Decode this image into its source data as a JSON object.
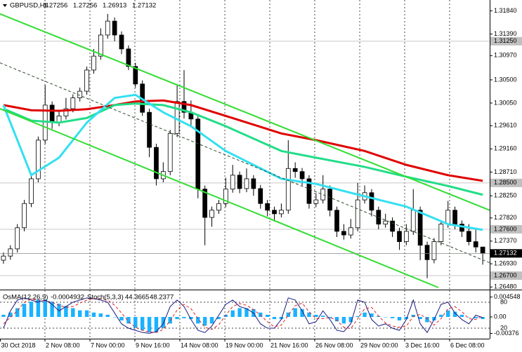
{
  "chart_data": [
    {
      "type": "candlestick",
      "symbol": "GBPUSD,H4",
      "xlim": [
        -0.5,
        70
      ],
      "xticks": [
        {
          "value": -0.5,
          "label": "30 Oct 2018"
        },
        {
          "value": 5.97,
          "label": "2 Nov 08:00"
        },
        {
          "value": 12.45,
          "label": "7 Nov 00:00"
        },
        {
          "value": 18.92,
          "label": "9 Nov 16:00"
        },
        {
          "value": 25.39,
          "label": "14 Nov 08:00"
        },
        {
          "value": 31.87,
          "label": "19 Nov 00:00"
        },
        {
          "value": 38.34,
          "label": "21 Nov 16:00"
        },
        {
          "value": 44.81,
          "label": "26 Nov 08:00"
        },
        {
          "value": 51.29,
          "label": "29 Nov 00:00"
        },
        {
          "value": 57.76,
          "label": "3 Dec 16:00"
        },
        {
          "value": 64.23,
          "label": "6 Dec 08:00"
        }
      ],
      "ylim": [
        1.2647,
        1.3205
      ],
      "yticks": [
        {
          "value": 1.3184,
          "label": "1.31840"
        },
        {
          "value": 1.3139,
          "label": "1.31390"
        },
        {
          "value": 1.3097,
          "label": "1.30970"
        },
        {
          "value": 1.305,
          "label": "1.30500"
        },
        {
          "value": 1.3005,
          "label": "1.30050"
        },
        {
          "value": 1.2961,
          "label": "1.29610"
        },
        {
          "value": 1.2916,
          "label": "1.29160"
        },
        {
          "value": 1.2871,
          "label": "1.28710"
        },
        {
          "value": 1.2825,
          "label": "1.28250"
        },
        {
          "value": 1.2782,
          "label": "1.27820"
        },
        {
          "value": 1.2737,
          "label": "1.27370"
        },
        {
          "value": 1.2693,
          "label": "1.26930"
        },
        {
          "value": 1.2648,
          "label": "1.26480"
        }
      ],
      "levels": [
        {
          "value": 1.3125,
          "label": "1.31250"
        },
        {
          "value": 1.285,
          "label": "1.28500"
        },
        {
          "value": 1.276,
          "label": "1.27600"
        },
        {
          "value": 1.267,
          "label": "1.26700"
        }
      ],
      "grid": true,
      "open": [
        1.27,
        1.2708,
        1.2722,
        1.2763,
        1.281,
        1.2858,
        1.2933,
        1.3001,
        1.2967,
        1.298,
        1.2994,
        1.3015,
        1.3028,
        1.3069,
        1.3096,
        1.3137,
        1.3164,
        1.3137,
        1.311,
        1.3076,
        1.3042,
        1.2987,
        1.2919,
        1.2858,
        1.2872,
        1.2946,
        1.3008,
        1.2987,
        1.2974,
        1.2838,
        1.2783,
        1.2797,
        1.281,
        1.2838,
        1.2865,
        1.2839,
        1.2858,
        1.2839,
        1.281,
        1.2797,
        1.279,
        1.2797,
        1.2878,
        1.2872,
        1.2858,
        1.281,
        1.2817,
        1.2838,
        1.2797,
        1.2756,
        1.2749,
        1.2763,
        1.2817,
        1.2831,
        1.2797,
        1.277,
        1.2776,
        1.2756,
        1.2736,
        1.2756,
        1.2797,
        1.2729,
        1.2701,
        1.2736,
        1.277,
        1.2797,
        1.277,
        1.2756,
        1.2736,
        1.27256
      ],
      "high": [
        1.2715,
        1.2729,
        1.277,
        1.2817,
        1.2865,
        1.294,
        1.304,
        1.3008,
        1.299,
        1.3015,
        1.3022,
        1.3035,
        1.3076,
        1.311,
        1.315,
        1.3178,
        1.3171,
        1.3144,
        1.3117,
        1.3083,
        1.3049,
        1.2994,
        1.2926,
        1.289,
        1.2953,
        1.304,
        1.3069,
        1.301,
        1.2981,
        1.2845,
        1.2804,
        1.2817,
        1.286,
        1.2885,
        1.2872,
        1.2878,
        1.2865,
        1.2846,
        1.2817,
        1.2804,
        1.281,
        1.2933,
        1.289,
        1.2879,
        1.2865,
        1.283,
        1.2865,
        1.2845,
        1.2804,
        1.277,
        1.278,
        1.285,
        1.2845,
        1.2838,
        1.2804,
        1.279,
        1.2783,
        1.2763,
        1.277,
        1.2838,
        1.2804,
        1.2736,
        1.2743,
        1.2777,
        1.2815,
        1.2804,
        1.2777,
        1.277,
        1.276,
        1.27256
      ],
      "low": [
        1.2693,
        1.2701,
        1.2715,
        1.2756,
        1.2803,
        1.2851,
        1.2926,
        1.2955,
        1.296,
        1.2973,
        1.2987,
        1.3008,
        1.3021,
        1.3062,
        1.3089,
        1.313,
        1.3125,
        1.31,
        1.3069,
        1.3035,
        1.298,
        1.29,
        1.2845,
        1.2851,
        1.2865,
        1.2939,
        1.2975,
        1.296,
        1.282,
        1.2729,
        1.2765,
        1.279,
        1.2803,
        1.2831,
        1.283,
        1.2832,
        1.2825,
        1.28,
        1.2785,
        1.2775,
        1.2783,
        1.279,
        1.286,
        1.2845,
        1.28,
        1.2803,
        1.281,
        1.2785,
        1.2745,
        1.274,
        1.2742,
        1.2756,
        1.281,
        1.2785,
        1.276,
        1.2763,
        1.2745,
        1.272,
        1.2729,
        1.2749,
        1.27,
        1.2665,
        1.2694,
        1.2729,
        1.2763,
        1.276,
        1.2745,
        1.2729,
        1.2715,
        1.26913
      ],
      "close": [
        1.2708,
        1.2722,
        1.2763,
        1.281,
        1.2858,
        1.2933,
        1.3001,
        1.2967,
        1.298,
        1.2994,
        1.3015,
        1.3028,
        1.3069,
        1.3096,
        1.3137,
        1.3164,
        1.3137,
        1.311,
        1.3076,
        1.3042,
        1.2987,
        1.2919,
        1.2858,
        1.2872,
        1.2946,
        1.3008,
        1.2987,
        1.2974,
        1.2838,
        1.2783,
        1.2797,
        1.281,
        1.2838,
        1.2865,
        1.2839,
        1.2858,
        1.2839,
        1.281,
        1.2797,
        1.279,
        1.2797,
        1.2878,
        1.2872,
        1.2858,
        1.281,
        1.2817,
        1.2838,
        1.2797,
        1.2756,
        1.2749,
        1.2763,
        1.2817,
        1.2831,
        1.2797,
        1.277,
        1.2776,
        1.2756,
        1.2736,
        1.2756,
        1.2797,
        1.2729,
        1.2701,
        1.2736,
        1.277,
        1.2797,
        1.277,
        1.2756,
        1.2736,
        1.27256,
        1.27132
      ],
      "series": [
        {
          "color": "#e00000",
          "width": 3,
          "x": [
            0,
            4,
            8,
            12,
            16,
            19,
            23,
            27,
            32,
            40,
            45,
            52,
            58,
            64,
            69
          ],
          "values": [
            1.3001,
            1.2991,
            1.299,
            1.2993,
            1.3001,
            1.3008,
            1.301,
            1.3001,
            1.298,
            1.2946,
            1.2933,
            1.2912,
            1.2885,
            1.2865,
            1.2854
          ]
        },
        {
          "color": "#22dd88",
          "width": 3,
          "x": [
            0,
            4,
            8,
            12,
            16,
            19,
            23,
            27,
            32,
            40,
            45,
            52,
            58,
            64,
            69
          ],
          "values": [
            1.2994,
            1.2971,
            1.2967,
            1.2976,
            1.3001,
            1.3004,
            1.3001,
            1.2987,
            1.296,
            1.2912,
            1.2899,
            1.2881,
            1.2862,
            1.2844,
            1.2827
          ]
        },
        {
          "color": "#33e0f0",
          "width": 3,
          "x": [
            0,
            4,
            8,
            12,
            16,
            19,
            23,
            27,
            32,
            40,
            45,
            52,
            58,
            64,
            69
          ],
          "values": [
            1.3001,
            1.2865,
            1.2899,
            1.2967,
            1.3015,
            1.3021,
            1.2987,
            1.296,
            1.2912,
            1.2858,
            1.2848,
            1.2824,
            1.2804,
            1.277,
            1.2759
          ]
        },
        {
          "color": "#33dd33",
          "width": 2,
          "x": [
            -0.5,
            70
          ],
          "values": [
            1.3178,
            1.2797
          ]
        },
        {
          "color": "#33dd33",
          "width": 2,
          "x": [
            -0.5,
            62.6
          ],
          "values": [
            1.2994,
            1.2647
          ]
        },
        {
          "color": "#2a4a2a",
          "width": 1,
          "dash": true,
          "x": [
            -0.5,
            70
          ],
          "values": [
            1.3083,
            1.2695
          ]
        }
      ]
    },
    {
      "type": "oscillator",
      "osma_title": "OsMA(12,26,9)",
      "stoch_title": "Stoch(5,3,3)",
      "ylim": [
        -0.00496,
        0.0056
      ],
      "yticks": [
        0.004548,
        {
          "value": 0,
          "label": "0.00"
        },
        -0.00376
      ],
      "y2lim": [
        -4.3,
        102.7
      ],
      "y2ticks": [
        80,
        20
      ],
      "osma": {
        "color": "#1ab2ff",
        "values": [
          0.0005,
          0.001,
          0.002,
          0.003,
          0.0035,
          0.004,
          0.004,
          0.0035,
          0.003,
          0.0025,
          0.002,
          0.0015,
          0.0015,
          0.001,
          0.0008,
          0.0005,
          0,
          -0.0008,
          -0.0015,
          -0.0025,
          -0.003,
          -0.0035,
          -0.0035,
          -0.0025,
          -0.0015,
          -0.0005,
          -0.0003,
          -0.0005,
          -0.0015,
          -0.002,
          -0.0015,
          -0.0005,
          0.0005,
          0.0015,
          0.002,
          0.002,
          0.0018,
          0.001,
          0.0005,
          -0.0005,
          -0.0005,
          0.001,
          0.002,
          0.0018,
          0.001,
          0.0005,
          0.0003,
          -0.0003,
          -0.001,
          -0.0015,
          -0.0012,
          0.0002,
          0.001,
          0.0008,
          0.0002,
          0,
          -0.0003,
          -0.0008,
          -0.0005,
          0.0005,
          -0.0005,
          -0.0012,
          -0.0008,
          0.0005,
          0.0015,
          0.0012,
          0.0005,
          0,
          -0.0003,
          -0.0004932
        ]
      },
      "series": [
        {
          "color": "#1a1a80",
          "axis": "y2",
          "values": [
            20,
            60,
            85,
            90,
            85,
            80,
            85,
            75,
            60,
            70,
            80,
            85,
            90,
            88,
            85,
            80,
            55,
            30,
            20,
            15,
            10,
            8,
            12,
            30,
            70,
            85,
            70,
            40,
            15,
            10,
            25,
            50,
            75,
            85,
            70,
            65,
            55,
            30,
            20,
            20,
            40,
            90,
            85,
            60,
            30,
            35,
            60,
            40,
            15,
            12,
            30,
            85,
            80,
            40,
            25,
            30,
            20,
            15,
            40,
            85,
            30,
            10,
            40,
            75,
            80,
            55,
            40,
            30,
            50,
            44.3665
          ]
        },
        {
          "color": "#e02020",
          "axis": "y2",
          "dash": true,
          "values": [
            30,
            45,
            60,
            80,
            87,
            85,
            83,
            80,
            73,
            68,
            70,
            78,
            85,
            88,
            88,
            85,
            73,
            55,
            35,
            22,
            15,
            11,
            10,
            17,
            37,
            62,
            75,
            65,
            42,
            22,
            17,
            28,
            50,
            70,
            77,
            73,
            63,
            50,
            35,
            23,
            27,
            50,
            72,
            78,
            58,
            42,
            42,
            45,
            38,
            22,
            19,
            42,
            65,
            68,
            48,
            32,
            25,
            22,
            25,
            47,
            52,
            42,
            27,
            42,
            65,
            70,
            58,
            42,
            40,
            48.2377
          ]
        }
      ]
    }
  ]
}
